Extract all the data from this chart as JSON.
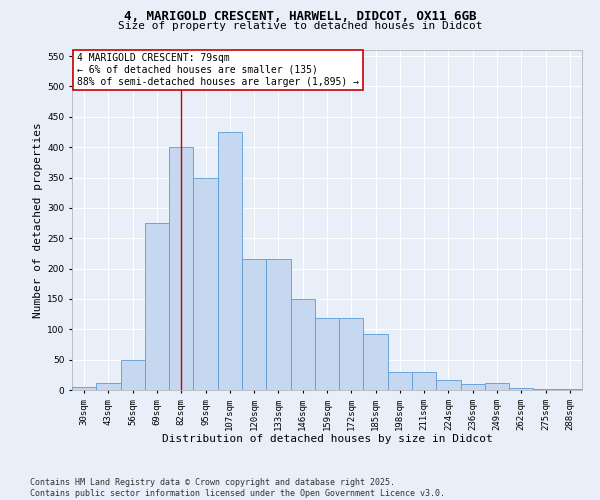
{
  "title_line1": "4, MARIGOLD CRESCENT, HARWELL, DIDCOT, OX11 6GB",
  "title_line2": "Size of property relative to detached houses in Didcot",
  "xlabel": "Distribution of detached houses by size in Didcot",
  "ylabel": "Number of detached properties",
  "categories": [
    "30sqm",
    "43sqm",
    "56sqm",
    "69sqm",
    "82sqm",
    "95sqm",
    "107sqm",
    "120sqm",
    "133sqm",
    "146sqm",
    "159sqm",
    "172sqm",
    "185sqm",
    "198sqm",
    "211sqm",
    "224sqm",
    "236sqm",
    "249sqm",
    "262sqm",
    "275sqm",
    "288sqm"
  ],
  "values": [
    5,
    12,
    50,
    275,
    400,
    350,
    425,
    215,
    215,
    150,
    118,
    118,
    92,
    30,
    30,
    17,
    10,
    12,
    3,
    2,
    1
  ],
  "bar_color": "#c5d8f0",
  "bar_edge_color": "#5b9bd5",
  "background_color": "#e8eff8",
  "grid_color": "#ffffff",
  "vline_x_index": 4.0,
  "vline_color": "#cc0000",
  "annotation_box_text": "4 MARIGOLD CRESCENT: 79sqm\n← 6% of detached houses are smaller (135)\n88% of semi-detached houses are larger (1,895) →",
  "annotation_box_color": "#cc0000",
  "ylim": [
    0,
    560
  ],
  "yticks": [
    0,
    50,
    100,
    150,
    200,
    250,
    300,
    350,
    400,
    450,
    500,
    550
  ],
  "footnote": "Contains HM Land Registry data © Crown copyright and database right 2025.\nContains public sector information licensed under the Open Government Licence v3.0.",
  "title_fontsize": 9,
  "subtitle_fontsize": 8,
  "axis_label_fontsize": 8,
  "tick_fontsize": 6.5,
  "annotation_fontsize": 7,
  "footnote_fontsize": 6
}
